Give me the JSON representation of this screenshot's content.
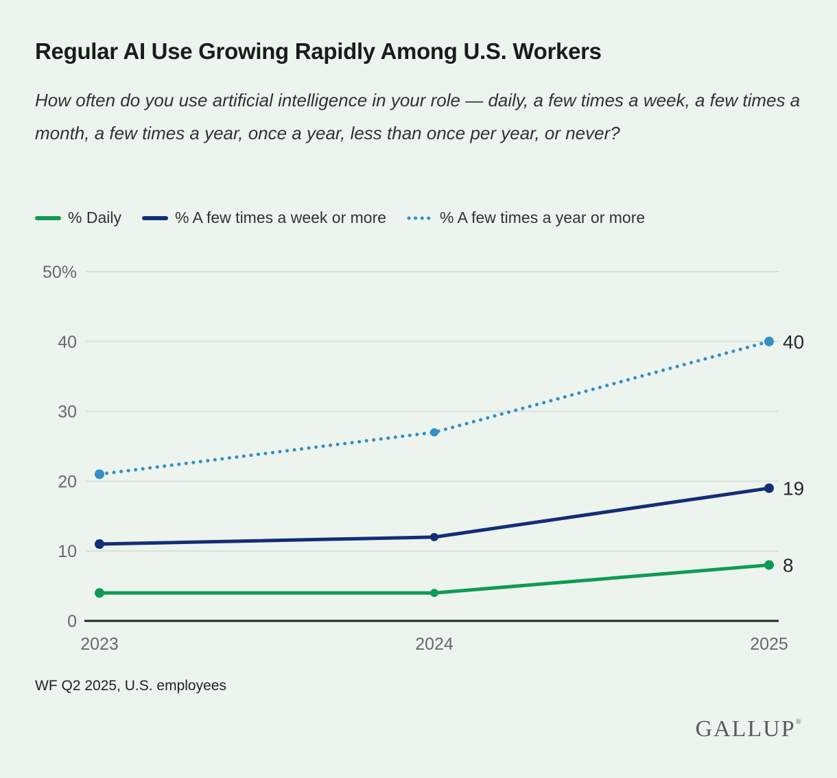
{
  "header": {
    "title": "Regular AI Use Growing Rapidly Among U.S. Workers",
    "subtitle": "How often do you use artificial intelligence in your role — daily, a few times a week, a few times a month, a few times a year, once a year, less than once per year, or never?"
  },
  "footer": {
    "source": "WF Q2 2025, U.S. employees",
    "logo": "GALLUP",
    "logo_mark": "®"
  },
  "chart_data": {
    "type": "line",
    "title": "Regular AI Use Growing Rapidly Among U.S. Workers",
    "x": [
      "2023",
      "2024",
      "2025"
    ],
    "series": [
      {
        "name": "% Daily",
        "values": [
          4,
          4,
          8
        ],
        "color": "#0f9a55",
        "line_style": "solid"
      },
      {
        "name": "% A few times a week or more",
        "values": [
          11,
          12,
          19
        ],
        "color": "#132e76",
        "line_style": "solid"
      },
      {
        "name": "% A few times a year or more",
        "values": [
          21,
          27,
          40
        ],
        "color": "#338fc6",
        "line_style": "dotted"
      }
    ],
    "end_value_labels": [
      "8",
      "19",
      "40"
    ],
    "xlabel": "",
    "ylabel": "",
    "ylim": [
      0,
      50
    ],
    "yticks": [
      0,
      10,
      20,
      30,
      40,
      50
    ],
    "ytick_labels": [
      "0",
      "10",
      "20",
      "30",
      "40",
      "50%"
    ],
    "grid": true,
    "legend_position": "top-left",
    "colors": {
      "background": "#edf4ee",
      "grid": "#d9e0d9",
      "axis": "#212621",
      "tick_text": "#646c64",
      "value_label_text": "#272b27"
    }
  }
}
